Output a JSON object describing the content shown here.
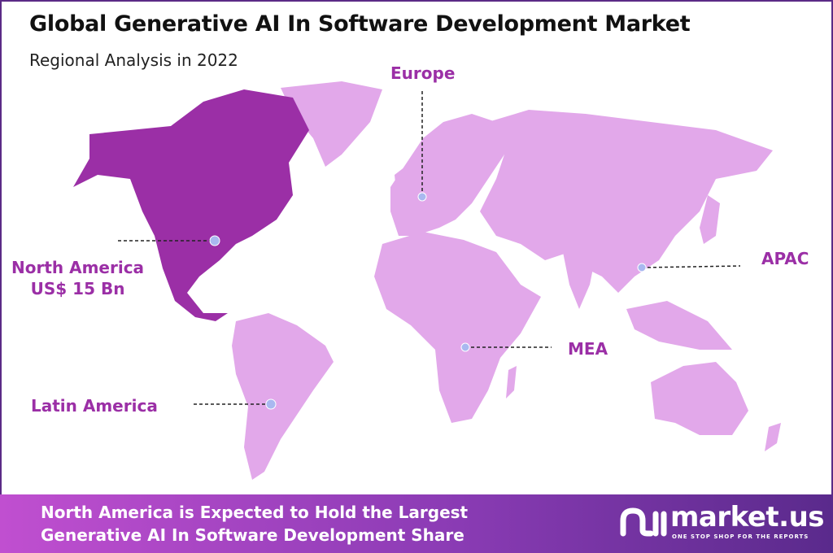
{
  "header": {
    "title": "Global Generative AI In Software Development Market",
    "subtitle": "Regional Analysis in 2022"
  },
  "colors": {
    "highlight_region": "#9b2fa6",
    "other_regions": "#e2a8ea",
    "label": "#9b2fa6",
    "marker": "#a9b8f0",
    "footer_start": "#c04fd0",
    "footer_end": "#5a2a8c"
  },
  "regions": [
    {
      "name": "North America",
      "value": "US$ 15 Bn",
      "highlighted": true
    },
    {
      "name": "Europe",
      "highlighted": false
    },
    {
      "name": "APAC",
      "highlighted": false
    },
    {
      "name": "MEA",
      "highlighted": false
    },
    {
      "name": "Latin America",
      "highlighted": false
    }
  ],
  "footer": {
    "line1": "North America is Expected to Hold the Largest",
    "line2": "Generative AI In Software Development  Share"
  },
  "logo": {
    "name": "market.us",
    "tagline": "ONE STOP SHOP FOR THE REPORTS"
  }
}
